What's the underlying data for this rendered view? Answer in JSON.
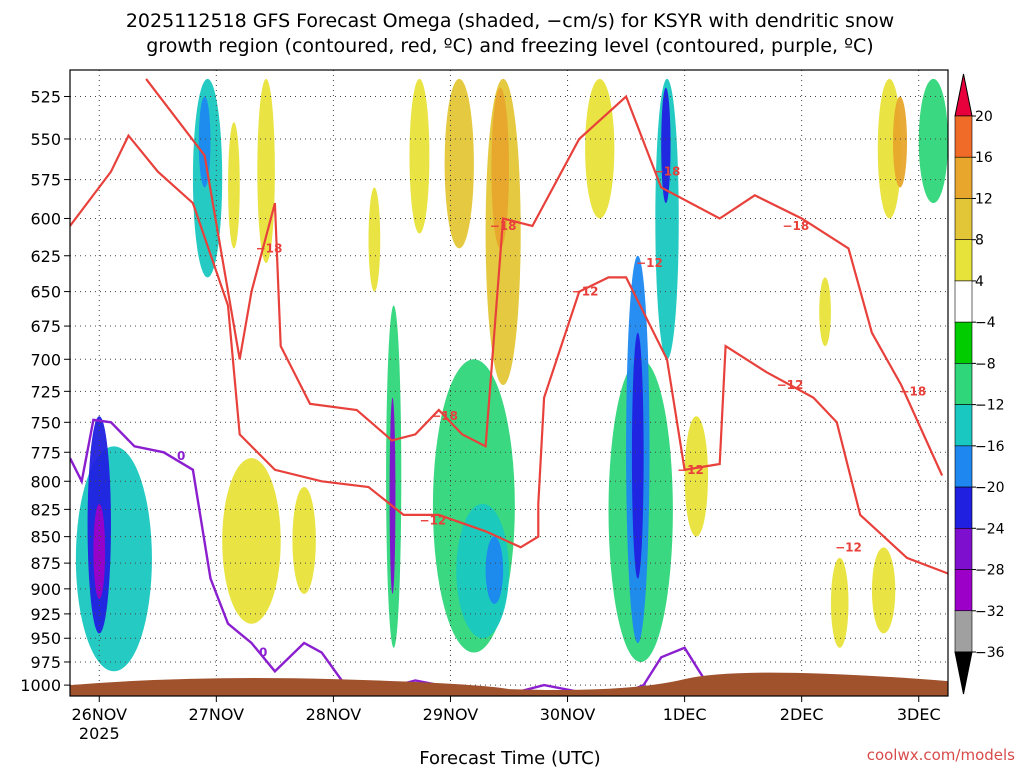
{
  "title_line1": "2025112518 GFS Forecast Omega (shaded, −cm/s) for KSYR with dendritic snow",
  "title_line2": "growth region (contoured, red, ºC) and freezing level (contoured, purple, ºC)",
  "xlabel": "Forecast Time (UTC)",
  "credit": "coolwx.com/models",
  "chart_data": {
    "type": "heatmap",
    "x_ticks": [
      "26NOV",
      "27NOV",
      "28NOV",
      "29NOV",
      "30NOV",
      "1DEC",
      "2DEC",
      "3DEC"
    ],
    "x_year": "2025",
    "x_range_days": [
      25.75,
      33.25
    ],
    "y_levels_hpa": [
      525,
      550,
      575,
      600,
      625,
      650,
      675,
      700,
      725,
      750,
      775,
      800,
      825,
      850,
      875,
      900,
      925,
      950,
      975,
      1000
    ],
    "y_range_hpa": [
      510,
      1012
    ],
    "y_scale": "log-pressure, inverted",
    "grid": true,
    "colorbar": {
      "ticks": [
        "20",
        "16",
        "12",
        "8",
        "4",
        "−4",
        "−8",
        "−12",
        "−16",
        "−20",
        "−24",
        "−28",
        "−32",
        "−36"
      ],
      "colors": [
        "#e8003c",
        "#f06a28",
        "#e8a72c",
        "#e3c637",
        "#e8e33a",
        "#ffffff",
        "#00cc00",
        "#2fd67a",
        "#19c8c0",
        "#1e88f0",
        "#2020e0",
        "#7e0fcf",
        "#9c00c8",
        "#a0a0a0",
        "#000000"
      ]
    },
    "contour_labels": {
      "snow_growth": [
        "−18",
        "−12"
      ],
      "freezing": [
        "0"
      ]
    },
    "contour_colors": {
      "snow_growth": "#e8413c",
      "freezing": "#8b1fd0",
      "ground": "#a0522d"
    },
    "omega_regions": [
      {
        "t": [
          25.8,
          26.45
        ],
        "p": [
          770,
          985
        ],
        "v": -12
      },
      {
        "t": [
          25.9,
          26.1
        ],
        "p": [
          745,
          945
        ],
        "v": -20
      },
      {
        "t": [
          25.95,
          26.05
        ],
        "p": [
          820,
          910
        ],
        "v": -28
      },
      {
        "t": [
          26.8,
          27.05
        ],
        "p": [
          515,
          640
        ],
        "v": -12
      },
      {
        "t": [
          26.85,
          26.95
        ],
        "p": [
          525,
          580
        ],
        "v": -16
      },
      {
        "t": [
          27.1,
          27.2
        ],
        "p": [
          540,
          620
        ],
        "v": 6
      },
      {
        "t": [
          27.35,
          27.5
        ],
        "p": [
          515,
          630
        ],
        "v": 6
      },
      {
        "t": [
          27.05,
          27.55
        ],
        "p": [
          780,
          935
        ],
        "v": 6
      },
      {
        "t": [
          27.65,
          27.85
        ],
        "p": [
          805,
          905
        ],
        "v": 6
      },
      {
        "t": [
          28.3,
          28.4
        ],
        "p": [
          580,
          650
        ],
        "v": 6
      },
      {
        "t": [
          28.45,
          28.58
        ],
        "p": [
          660,
          960
        ],
        "v": -8
      },
      {
        "t": [
          28.48,
          28.53
        ],
        "p": [
          730,
          905
        ],
        "v": -24
      },
      {
        "t": [
          28.65,
          28.82
        ],
        "p": [
          515,
          610
        ],
        "v": 6
      },
      {
        "t": [
          28.85,
          29.55
        ],
        "p": [
          700,
          965
        ],
        "v": -8
      },
      {
        "t": [
          29.05,
          29.5
        ],
        "p": [
          820,
          950
        ],
        "v": -12
      },
      {
        "t": [
          29.3,
          29.45
        ],
        "p": [
          850,
          915
        ],
        "v": -16
      },
      {
        "t": [
          28.95,
          29.2
        ],
        "p": [
          515,
          620
        ],
        "v": 10
      },
      {
        "t": [
          29.3,
          29.6
        ],
        "p": [
          515,
          720
        ],
        "v": 8
      },
      {
        "t": [
          29.35,
          29.5
        ],
        "p": [
          520,
          620
        ],
        "v": 14
      },
      {
        "t": [
          30.15,
          30.4
        ],
        "p": [
          515,
          600
        ],
        "v": 6
      },
      {
        "t": [
          30.35,
          30.9
        ],
        "p": [
          700,
          975
        ],
        "v": -8
      },
      {
        "t": [
          30.5,
          30.7
        ],
        "p": [
          625,
          955
        ],
        "v": -16
      },
      {
        "t": [
          30.55,
          30.65
        ],
        "p": [
          680,
          890
        ],
        "v": -22
      },
      {
        "t": [
          30.75,
          30.95
        ],
        "p": [
          515,
          700
        ],
        "v": -12
      },
      {
        "t": [
          30.8,
          30.88
        ],
        "p": [
          520,
          590
        ],
        "v": -20
      },
      {
        "t": [
          31.0,
          31.2
        ],
        "p": [
          745,
          850
        ],
        "v": 6
      },
      {
        "t": [
          32.15,
          32.25
        ],
        "p": [
          640,
          690
        ],
        "v": 6
      },
      {
        "t": [
          32.25,
          32.4
        ],
        "p": [
          870,
          960
        ],
        "v": 6
      },
      {
        "t": [
          32.65,
          32.85
        ],
        "p": [
          515,
          600
        ],
        "v": 6
      },
      {
        "t": [
          32.78,
          32.9
        ],
        "p": [
          525,
          580
        ],
        "v": 12
      },
      {
        "t": [
          32.6,
          32.8
        ],
        "p": [
          860,
          945
        ],
        "v": 6
      },
      {
        "t": [
          33.0,
          33.25
        ],
        "p": [
          515,
          590
        ],
        "v": -8
      }
    ],
    "freezing_level_0C": [
      {
        "t": 25.75,
        "p": 780
      },
      {
        "t": 25.85,
        "p": 800
      },
      {
        "t": 25.95,
        "p": 748
      },
      {
        "t": 26.1,
        "p": 750
      },
      {
        "t": 26.3,
        "p": 770
      },
      {
        "t": 26.55,
        "p": 775
      },
      {
        "t": 26.8,
        "p": 790
      },
      {
        "t": 26.95,
        "p": 890
      },
      {
        "t": 27.1,
        "p": 935
      },
      {
        "t": 27.3,
        "p": 955
      },
      {
        "t": 27.5,
        "p": 985
      },
      {
        "t": 27.75,
        "p": 955
      },
      {
        "t": 27.9,
        "p": 965
      },
      {
        "t": 28.1,
        "p": 1000
      },
      {
        "t": 28.4,
        "p": 1005
      },
      {
        "t": 28.7,
        "p": 995
      },
      {
        "t": 28.9,
        "p": 1000
      },
      {
        "t": 29.2,
        "p": 1005
      },
      {
        "t": 29.5,
        "p": 1010
      },
      {
        "t": 29.8,
        "p": 1000
      },
      {
        "t": 30.2,
        "p": 1010
      },
      {
        "t": 30.5,
        "p": 1008
      },
      {
        "t": 30.65,
        "p": 1000
      },
      {
        "t": 30.8,
        "p": 970
      },
      {
        "t": 31.0,
        "p": 960
      },
      {
        "t": 31.2,
        "p": 1000
      }
    ],
    "snow_growth_minus12C_lower": [
      {
        "t": 25.75,
        "p": 605
      },
      {
        "t": 26.1,
        "p": 570
      },
      {
        "t": 26.25,
        "p": 548
      },
      {
        "t": 26.5,
        "p": 570
      },
      {
        "t": 26.8,
        "p": 590
      },
      {
        "t": 27.1,
        "p": 660
      },
      {
        "t": 27.2,
        "p": 760
      },
      {
        "t": 27.5,
        "p": 790
      },
      {
        "t": 27.9,
        "p": 800
      },
      {
        "t": 28.3,
        "p": 805
      },
      {
        "t": 28.6,
        "p": 830
      },
      {
        "t": 28.9,
        "p": 830
      },
      {
        "t": 29.3,
        "p": 845
      },
      {
        "t": 29.6,
        "p": 860
      },
      {
        "t": 29.75,
        "p": 850
      },
      {
        "t": 29.75,
        "p": 820
      },
      {
        "t": 29.8,
        "p": 730
      },
      {
        "t": 30.1,
        "p": 650
      },
      {
        "t": 30.35,
        "p": 640
      },
      {
        "t": 30.5,
        "p": 640
      },
      {
        "t": 30.85,
        "p": 700
      },
      {
        "t": 31.0,
        "p": 790
      },
      {
        "t": 31.3,
        "p": 785
      },
      {
        "t": 31.35,
        "p": 690
      },
      {
        "t": 31.7,
        "p": 710
      },
      {
        "t": 32.1,
        "p": 730
      },
      {
        "t": 32.3,
        "p": 750
      },
      {
        "t": 32.5,
        "p": 830
      },
      {
        "t": 32.9,
        "p": 870
      },
      {
        "t": 33.25,
        "p": 885
      }
    ],
    "snow_growth_minus18C_upper": [
      {
        "t": 26.4,
        "p": 515
      },
      {
        "t": 26.9,
        "p": 560
      },
      {
        "t": 27.2,
        "p": 700
      },
      {
        "t": 27.3,
        "p": 650
      },
      {
        "t": 27.5,
        "p": 590
      },
      {
        "t": 27.55,
        "p": 690
      },
      {
        "t": 27.8,
        "p": 735
      },
      {
        "t": 28.2,
        "p": 740
      },
      {
        "t": 28.5,
        "p": 765
      },
      {
        "t": 28.7,
        "p": 760
      },
      {
        "t": 28.9,
        "p": 740
      },
      {
        "t": 29.1,
        "p": 760
      },
      {
        "t": 29.3,
        "p": 770
      },
      {
        "t": 29.45,
        "p": 600
      },
      {
        "t": 29.7,
        "p": 605
      },
      {
        "t": 30.1,
        "p": 550
      },
      {
        "t": 30.5,
        "p": 525
      },
      {
        "t": 30.8,
        "p": 580
      },
      {
        "t": 31.3,
        "p": 600
      },
      {
        "t": 31.6,
        "p": 585
      },
      {
        "t": 32.0,
        "p": 600
      },
      {
        "t": 32.4,
        "p": 620
      },
      {
        "t": 32.6,
        "p": 680
      },
      {
        "t": 32.85,
        "p": 720
      },
      {
        "t": 33.2,
        "p": 795
      }
    ],
    "contour_label_points": [
      {
        "text": "−18",
        "t": 27.45,
        "p": 620,
        "kind": "snow_growth"
      },
      {
        "text": "−18",
        "t": 29.45,
        "p": 605,
        "kind": "snow_growth"
      },
      {
        "text": "−18",
        "t": 30.85,
        "p": 570,
        "kind": "snow_growth"
      },
      {
        "text": "−18",
        "t": 31.95,
        "p": 605,
        "kind": "snow_growth"
      },
      {
        "text": "−18",
        "t": 32.95,
        "p": 725,
        "kind": "snow_growth"
      },
      {
        "text": "−18",
        "t": 28.95,
        "p": 745,
        "kind": "snow_growth"
      },
      {
        "text": "−12",
        "t": 30.15,
        "p": 650,
        "kind": "snow_growth"
      },
      {
        "text": "−12",
        "t": 30.7,
        "p": 630,
        "kind": "snow_growth"
      },
      {
        "text": "−12",
        "t": 31.05,
        "p": 790,
        "kind": "snow_growth"
      },
      {
        "text": "−12",
        "t": 31.9,
        "p": 720,
        "kind": "snow_growth"
      },
      {
        "text": "−12",
        "t": 32.4,
        "p": 860,
        "kind": "snow_growth"
      },
      {
        "text": "−12",
        "t": 28.85,
        "p": 835,
        "kind": "snow_growth"
      },
      {
        "text": "0",
        "t": 26.7,
        "p": 778,
        "kind": "freezing"
      },
      {
        "text": "0",
        "t": 27.4,
        "p": 965,
        "kind": "freezing"
      }
    ]
  }
}
